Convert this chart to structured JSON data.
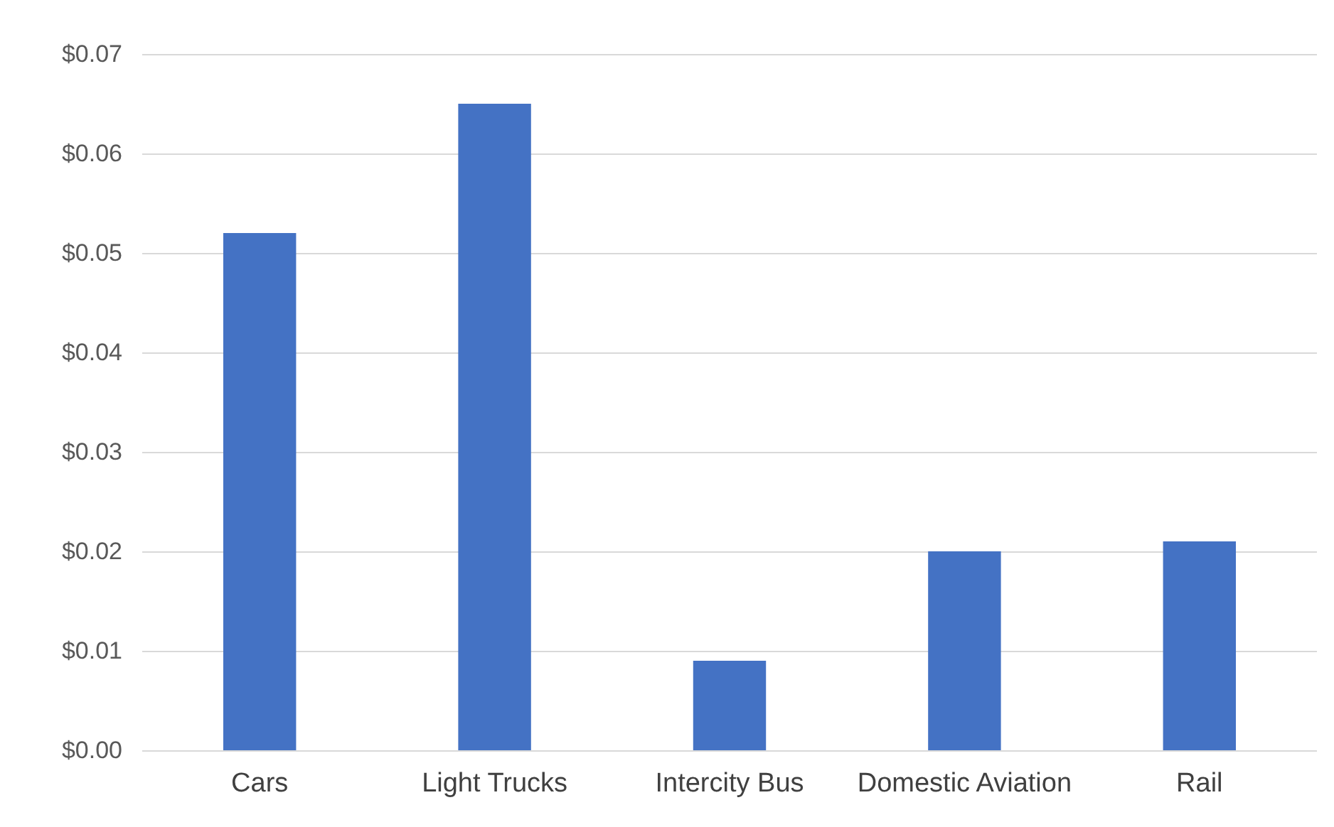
{
  "chart_data": {
    "type": "bar",
    "categories": [
      "Cars",
      "Light Trucks",
      "Intercity Bus",
      "Domestic Aviation",
      "Rail"
    ],
    "values": [
      0.052,
      0.065,
      0.009,
      0.02,
      0.021
    ],
    "color": "#4472c4",
    "ylim": [
      0,
      0.07
    ],
    "yticks": [
      {
        "value": 0,
        "label": "$0.00"
      },
      {
        "value": 0.01,
        "label": "$0.01"
      },
      {
        "value": 0.02,
        "label": "$0.02"
      },
      {
        "value": 0.03,
        "label": "$0.03"
      },
      {
        "value": 0.04,
        "label": "$0.04"
      },
      {
        "value": 0.05,
        "label": "$0.05"
      },
      {
        "value": 0.06,
        "label": "$0.06"
      },
      {
        "value": 0.07,
        "label": "$0.07"
      }
    ],
    "grid": "y"
  }
}
